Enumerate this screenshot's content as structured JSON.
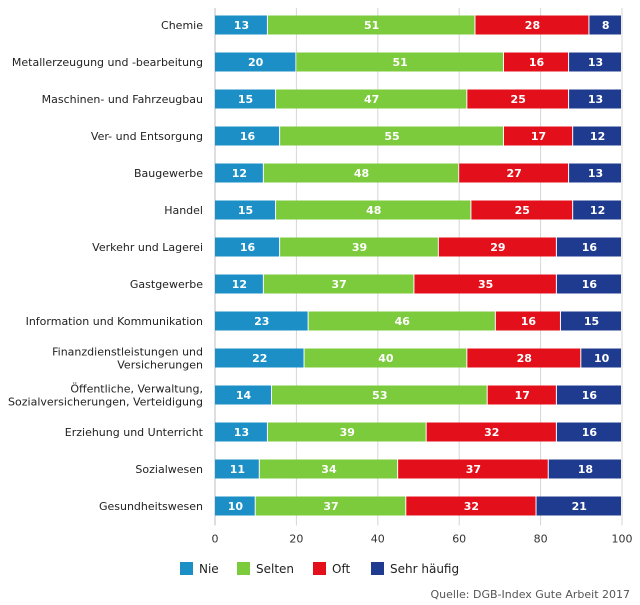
{
  "chart_data": {
    "type": "bar",
    "orientation": "horizontal",
    "stacked": true,
    "categories": [
      "Chemie",
      "Metallerzeugung und -bearbeitung",
      "Maschinen- und Fahrzeugbau",
      "Ver- und Entsorgung",
      "Baugewerbe",
      "Handel",
      "Verkehr und Lagerei",
      "Gastgewerbe",
      "Information und Kommunikation",
      "Finanzdienstleistungen und Versicherungen",
      "Öffentliche, Verwaltung, Sozialversicherungen, Verteidigung",
      "Erziehung und Unterricht",
      "Sozialwesen",
      "Gesundheitswesen"
    ],
    "category_lines": [
      [
        "Chemie"
      ],
      [
        "Metallerzeugung und -bearbeitung"
      ],
      [
        "Maschinen- und Fahrzeugbau"
      ],
      [
        "Ver- und Entsorgung"
      ],
      [
        "Baugewerbe"
      ],
      [
        "Handel"
      ],
      [
        "Verkehr und Lagerei"
      ],
      [
        "Gastgewerbe"
      ],
      [
        "Information und Kommunikation"
      ],
      [
        "Finanzdienstleistungen und",
        "Versicherungen"
      ],
      [
        "Öffentliche, Verwaltung,",
        "Sozialversicherungen, Verteidigung"
      ],
      [
        "Erziehung und Unterricht"
      ],
      [
        "Sozialwesen"
      ],
      [
        "Gesundheitswesen"
      ]
    ],
    "series": [
      {
        "name": "Nie",
        "color": "#1b8fc6",
        "values": [
          13,
          20,
          15,
          16,
          12,
          15,
          16,
          12,
          23,
          22,
          14,
          13,
          11,
          10
        ]
      },
      {
        "name": "Selten",
        "color": "#7ccb3c",
        "values": [
          51,
          51,
          47,
          55,
          48,
          48,
          39,
          37,
          46,
          40,
          53,
          39,
          34,
          37
        ]
      },
      {
        "name": "Oft",
        "color": "#e3101b",
        "values": [
          28,
          16,
          25,
          17,
          27,
          25,
          29,
          35,
          16,
          28,
          17,
          32,
          37,
          32
        ]
      },
      {
        "name": "Sehr häufig",
        "color": "#1f3b8f",
        "values": [
          8,
          13,
          13,
          12,
          13,
          12,
          16,
          16,
          15,
          10,
          16,
          16,
          18,
          21
        ]
      }
    ],
    "xlim": [
      0,
      100
    ],
    "xticks": [
      0,
      20,
      40,
      60,
      80,
      100
    ],
    "grid": true,
    "legend_position": "bottom"
  },
  "source": "Quelle: DGB-Index Gute Arbeit 2017"
}
